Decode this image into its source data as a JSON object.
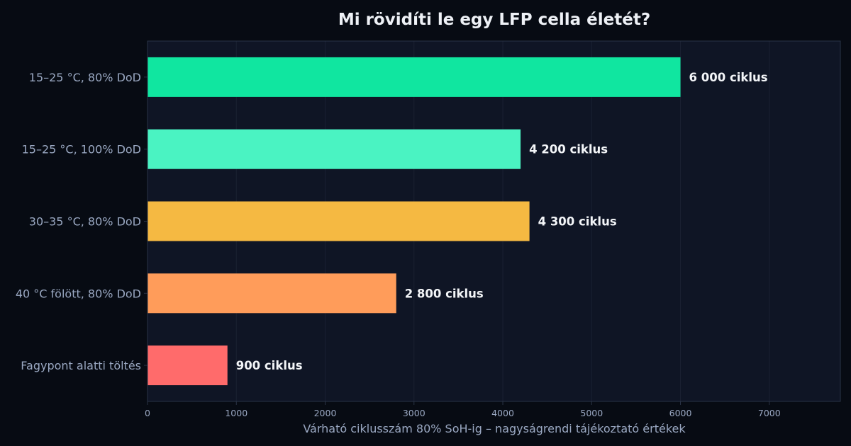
{
  "chart_data": {
    "type": "bar",
    "orientation": "horizontal",
    "title": "Mi rövidíti le egy LFP cella életét?",
    "xlabel": "Várható ciklusszám 80% SoH-ig – nagyságrendi tájékoztató értékek",
    "ylabel": "",
    "xlim": [
      0,
      7800
    ],
    "xticks": [
      0,
      1000,
      2000,
      3000,
      4000,
      5000,
      6000,
      7000
    ],
    "grid": "vertical",
    "categories": [
      "15–25 °C, 80% DoD",
      "15–25 °C, 100% DoD",
      "30–35 °C, 80% DoD",
      "40 °C fölött, 80% DoD",
      "Fagypont alatti töltés"
    ],
    "values": [
      6000,
      4200,
      4300,
      2800,
      900
    ],
    "value_labels": [
      "6 000 ciklus",
      "4 200 ciklus",
      "4 300 ciklus",
      "2 800 ciklus",
      "900 ciklus"
    ],
    "colors": [
      "#10e6a0",
      "#4af3c2",
      "#f5b942",
      "#ff9c5a",
      "#ff6b6b"
    ]
  },
  "theme": {
    "background": "#070b13",
    "plot_background": "#0f1525",
    "grid_color": "#1a2132",
    "axis_color": "#2a3346"
  }
}
